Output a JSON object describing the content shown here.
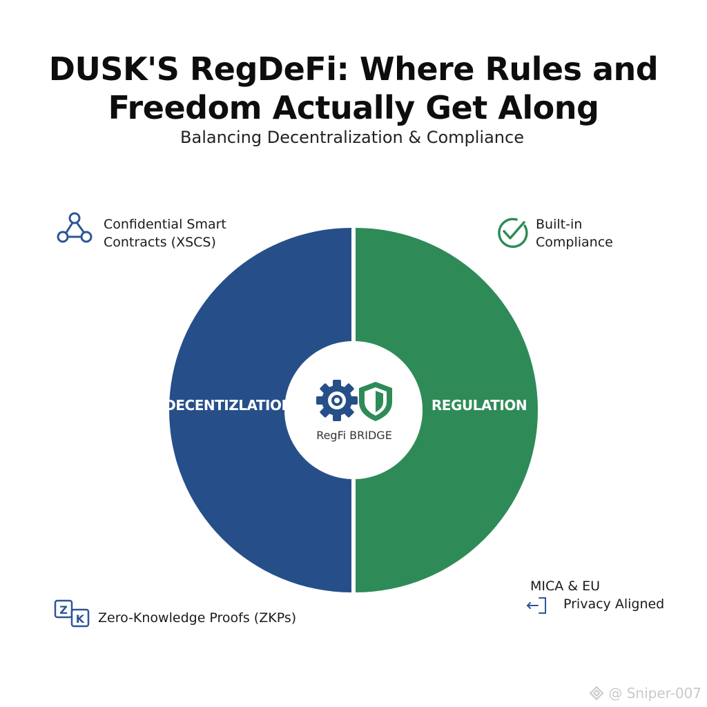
{
  "title": {
    "line1": "DUSK'S RegDeFi: Where Rules and",
    "line2": "Freedom Actually Get Along"
  },
  "subtitle": "Balancing Decentralization & Compliance",
  "diagram": {
    "left_label": "DECENTIZLATION",
    "right_label": "REGULATION",
    "center_label": "RegFi BRIDGE",
    "colors": {
      "left": "#264f8a",
      "right": "#2e8b57",
      "center": "#ffffff"
    }
  },
  "features": {
    "top_left": {
      "icon": "network-nodes-icon",
      "line1": "Confidential Smart",
      "line2": "Contracts (XSCS)"
    },
    "top_right": {
      "icon": "check-circle-icon",
      "line1": "Built-in",
      "line2": "Compliance"
    },
    "bottom_left": {
      "icon": "zk-icon",
      "text": "Zero-Knowledge Proofs (ZKPs)"
    },
    "bottom_right": {
      "icon": "transfer-arrows-icon",
      "line1": "MICA & EU",
      "line2": "Privacy Aligned"
    }
  },
  "watermark": {
    "icon": "platform-logo-icon",
    "text": "@ Sniper-007"
  }
}
